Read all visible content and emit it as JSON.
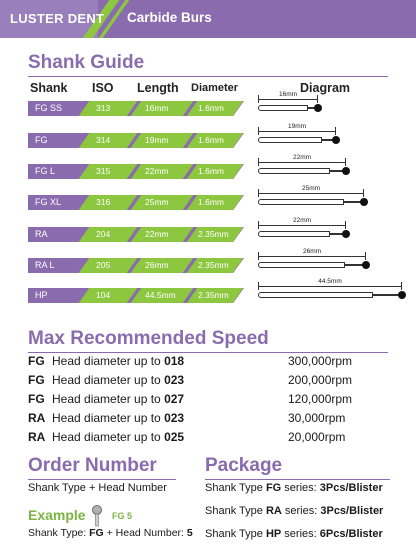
{
  "header": {
    "brand": "LUSTER DENT",
    "title": "Carbide Burs"
  },
  "shank_guide": {
    "title": "Shank Guide",
    "columns": {
      "shank": "Shank",
      "iso": "ISO",
      "length": "Length",
      "diameter": "Diameter",
      "diagram": "Diagram"
    },
    "rows": [
      {
        "shank": "FG SS",
        "iso": "313",
        "length": "16mm",
        "diameter": "1.6mm",
        "diagram_label": "16mm"
      },
      {
        "shank": "FG",
        "iso": "314",
        "length": "19mm",
        "diameter": "1.6mm",
        "diagram_label": "19mm"
      },
      {
        "shank": "FG L",
        "iso": "315",
        "length": "22mm",
        "diameter": "1.6mm",
        "diagram_label": "22mm"
      },
      {
        "shank": "FG XL",
        "iso": "316",
        "length": "25mm",
        "diameter": "1.6mm",
        "diagram_label": "25mm"
      },
      {
        "shank": "RA",
        "iso": "204",
        "length": "22mm",
        "diameter": "2.35mm",
        "diagram_label": "22mm"
      },
      {
        "shank": "RA L",
        "iso": "205",
        "length": "26mm",
        "diameter": "2.35mm",
        "diagram_label": "26mm"
      },
      {
        "shank": "HP",
        "iso": "104",
        "length": "44.5mm",
        "diameter": "2.35mm",
        "diagram_label": "44.5mm"
      }
    ]
  },
  "max_speed": {
    "title": "Max Recommended Speed",
    "rows": [
      {
        "type": "FG",
        "desc": "Head diameter up to ",
        "value": "018",
        "rpm": "300,000rpm"
      },
      {
        "type": "FG",
        "desc": "Head diameter up to ",
        "value": "023",
        "rpm": "200,000rpm"
      },
      {
        "type": "FG",
        "desc": "Head diameter up to ",
        "value": "027",
        "rpm": "120,000rpm"
      },
      {
        "type": "RA",
        "desc": "Head diameter up to ",
        "value": "023",
        "rpm": "30,000rpm"
      },
      {
        "type": "RA",
        "desc": "Head diameter up to ",
        "value": "025",
        "rpm": "20,000rpm"
      }
    ]
  },
  "order_number": {
    "title": "Order Number",
    "formula": "Shank Type + Head Number",
    "example_label": "Example",
    "example_code": "FG 5",
    "example_prefix": "Shank Type: ",
    "example_type": "FG",
    "example_mid": " + Head Number: ",
    "example_head": "5"
  },
  "package": {
    "title": "Package",
    "rows": [
      {
        "prefix": "Shank Type ",
        "type": "FG",
        "mid": " series: ",
        "amount": "3Pcs/Blister"
      },
      {
        "prefix": "Shank Type ",
        "type": "RA",
        "mid": " series: ",
        "amount": "3Pcs/Blister"
      },
      {
        "prefix": "Shank Type ",
        "type": "HP",
        "mid": " series: ",
        "amount": "6Pcs/Blister"
      }
    ]
  },
  "colors": {
    "purple": "#8a6cae",
    "green": "#8dc63f"
  }
}
